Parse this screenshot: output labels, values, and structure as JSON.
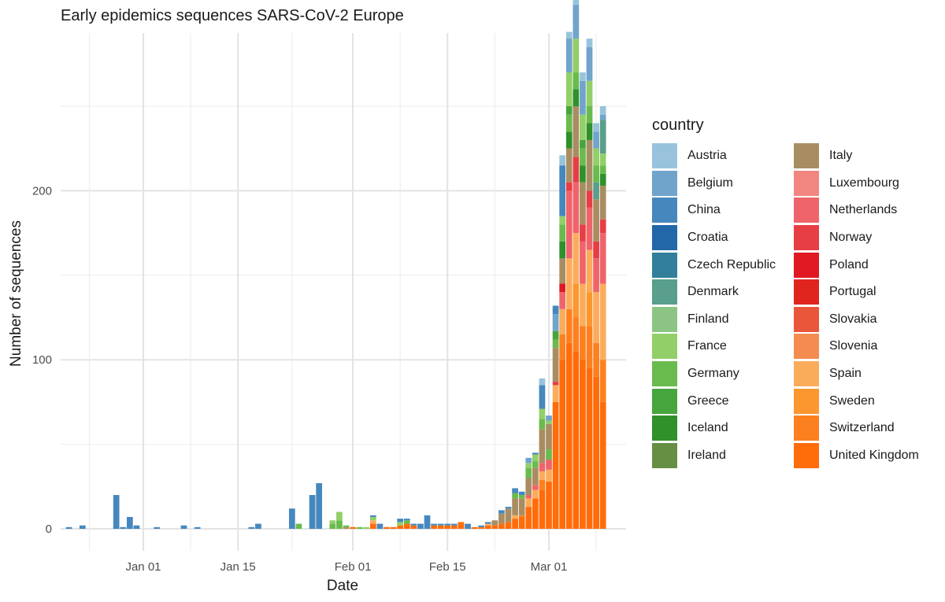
{
  "chart_data": {
    "type": "bar",
    "stacked": true,
    "title": "Early epidemics sequences SARS-CoV-2 Europe",
    "xlabel": "Date",
    "ylabel": "Number of sequences",
    "x_ticks": [
      "Jan 01",
      "Jan 15",
      "Feb 01",
      "Feb 15",
      "Mar 01"
    ],
    "y_ticks": [
      "0",
      "100",
      "200"
    ],
    "ylim": [
      0,
      287
    ],
    "xlim": [
      "2019-12-19",
      "2020-03-13"
    ],
    "grid": true,
    "legend_title": "country",
    "legend_position": "right",
    "countries": [
      "Austria",
      "Belgium",
      "China",
      "Croatia",
      "Czech Republic",
      "Denmark",
      "Finland",
      "France",
      "Germany",
      "Greece",
      "Iceland",
      "Ireland",
      "Italy",
      "Luxembourg",
      "Netherlands",
      "Norway",
      "Poland",
      "Portugal",
      "Slovakia",
      "Slovenia",
      "Spain",
      "Sweden",
      "Switzerland",
      "United Kingdom"
    ],
    "colors": {
      "Austria": "#99c3dc",
      "Belgium": "#70a4cb",
      "China": "#4688be",
      "Croatia": "#2268a8",
      "Czech Republic": "#317f9b",
      "Denmark": "#5a9e8c",
      "Finland": "#8cc583",
      "France": "#92cf68",
      "Germany": "#6abb4d",
      "Greece": "#46a53d",
      "Iceland": "#30912a",
      "Ireland": "#678f43",
      "Italy": "#a98d62",
      "Luxembourg": "#f0867f",
      "Netherlands": "#ef646a",
      "Norway": "#e73d44",
      "Poland": "#e01822",
      "Portugal": "#e0251f",
      "Slovakia": "#ea563a",
      "Slovenia": "#f48c50",
      "Spain": "#fbac5b",
      "Sweden": "#fc962f",
      "Switzerland": "#fd8020",
      "United Kingdom": "#ff6c0a"
    },
    "bars": [
      {
        "date": "2019-12-21",
        "segments": [
          [
            "China",
            1
          ]
        ]
      },
      {
        "date": "2019-12-23",
        "segments": [
          [
            "China",
            2
          ]
        ]
      },
      {
        "date": "2019-12-28",
        "segments": [
          [
            "China",
            20
          ]
        ]
      },
      {
        "date": "2019-12-29",
        "segments": [
          [
            "China",
            1
          ]
        ]
      },
      {
        "date": "2019-12-30",
        "segments": [
          [
            "China",
            7
          ]
        ]
      },
      {
        "date": "2019-12-31",
        "segments": [
          [
            "China",
            2
          ]
        ]
      },
      {
        "date": "2020-01-03",
        "segments": [
          [
            "China",
            1
          ]
        ]
      },
      {
        "date": "2020-01-07",
        "segments": [
          [
            "China",
            2
          ]
        ]
      },
      {
        "date": "2020-01-09",
        "segments": [
          [
            "China",
            1
          ]
        ]
      },
      {
        "date": "2020-01-17",
        "segments": [
          [
            "China",
            1
          ]
        ]
      },
      {
        "date": "2020-01-18",
        "segments": [
          [
            "China",
            3
          ]
        ]
      },
      {
        "date": "2020-01-23",
        "segments": [
          [
            "China",
            12
          ]
        ]
      },
      {
        "date": "2020-01-24",
        "segments": [
          [
            "Germany",
            3
          ]
        ]
      },
      {
        "date": "2020-01-26",
        "segments": [
          [
            "China",
            20
          ]
        ]
      },
      {
        "date": "2020-01-27",
        "segments": [
          [
            "China",
            27
          ]
        ]
      },
      {
        "date": "2020-01-29",
        "segments": [
          [
            "Germany",
            3
          ],
          [
            "France",
            2
          ]
        ]
      },
      {
        "date": "2020-01-30",
        "segments": [
          [
            "Germany",
            5
          ],
          [
            "France",
            5
          ]
        ]
      },
      {
        "date": "2020-01-31",
        "segments": [
          [
            "Italy",
            1
          ],
          [
            "Germany",
            1
          ]
        ]
      },
      {
        "date": "2020-02-01",
        "segments": [
          [
            "United Kingdom",
            1
          ]
        ]
      },
      {
        "date": "2020-02-02",
        "segments": [
          [
            "Germany",
            1
          ]
        ]
      },
      {
        "date": "2020-02-03",
        "segments": [
          [
            "France",
            1
          ]
        ]
      },
      {
        "date": "2020-02-04",
        "segments": [
          [
            "United Kingdom",
            3
          ],
          [
            "Spain",
            2
          ],
          [
            "France",
            2
          ],
          [
            "China",
            1
          ]
        ]
      },
      {
        "date": "2020-02-05",
        "segments": [
          [
            "China",
            3
          ]
        ]
      },
      {
        "date": "2020-02-06",
        "segments": [
          [
            "United Kingdom",
            1
          ]
        ]
      },
      {
        "date": "2020-02-07",
        "segments": [
          [
            "United Kingdom",
            1
          ]
        ]
      },
      {
        "date": "2020-02-08",
        "segments": [
          [
            "United Kingdom",
            2
          ],
          [
            "France",
            2
          ],
          [
            "China",
            2
          ]
        ]
      },
      {
        "date": "2020-02-09",
        "segments": [
          [
            "United Kingdom",
            3
          ],
          [
            "Germany",
            2
          ],
          [
            "China",
            1
          ]
        ]
      },
      {
        "date": "2020-02-10",
        "segments": [
          [
            "United Kingdom",
            2
          ],
          [
            "China",
            1
          ]
        ]
      },
      {
        "date": "2020-02-11",
        "segments": [
          [
            "China",
            3
          ]
        ]
      },
      {
        "date": "2020-02-12",
        "segments": [
          [
            "China",
            8
          ]
        ]
      },
      {
        "date": "2020-02-13",
        "segments": [
          [
            "United Kingdom",
            2
          ],
          [
            "China",
            1
          ]
        ]
      },
      {
        "date": "2020-02-14",
        "segments": [
          [
            "United Kingdom",
            2
          ],
          [
            "China",
            1
          ]
        ]
      },
      {
        "date": "2020-02-15",
        "segments": [
          [
            "United Kingdom",
            2
          ],
          [
            "China",
            1
          ]
        ]
      },
      {
        "date": "2020-02-16",
        "segments": [
          [
            "United Kingdom",
            2
          ],
          [
            "China",
            1
          ]
        ]
      },
      {
        "date": "2020-02-17",
        "segments": [
          [
            "United Kingdom",
            4
          ]
        ]
      },
      {
        "date": "2020-02-18",
        "segments": [
          [
            "China",
            3
          ]
        ]
      },
      {
        "date": "2020-02-19",
        "segments": [
          [
            "United Kingdom",
            1
          ]
        ]
      },
      {
        "date": "2020-02-20",
        "segments": [
          [
            "United Kingdom",
            1
          ],
          [
            "China",
            1
          ]
        ]
      },
      {
        "date": "2020-02-21",
        "segments": [
          [
            "United Kingdom",
            2
          ],
          [
            "Spain",
            1
          ],
          [
            "China",
            1
          ]
        ]
      },
      {
        "date": "2020-02-22",
        "segments": [
          [
            "United Kingdom",
            2
          ],
          [
            "Italy",
            3
          ]
        ]
      },
      {
        "date": "2020-02-23",
        "segments": [
          [
            "United Kingdom",
            3
          ],
          [
            "Italy",
            6
          ],
          [
            "China",
            2
          ]
        ]
      },
      {
        "date": "2020-02-24",
        "segments": [
          [
            "United Kingdom",
            4
          ],
          [
            "Italy",
            8
          ],
          [
            "China",
            1
          ]
        ]
      },
      {
        "date": "2020-02-25",
        "segments": [
          [
            "United Kingdom",
            6
          ],
          [
            "Spain",
            2
          ],
          [
            "Italy",
            10
          ],
          [
            "Germany",
            3
          ],
          [
            "China",
            3
          ]
        ]
      },
      {
        "date": "2020-02-26",
        "segments": [
          [
            "United Kingdom",
            7
          ],
          [
            "Switzerland",
            1
          ],
          [
            "Italy",
            10
          ],
          [
            "Germany",
            2
          ],
          [
            "China",
            2
          ]
        ]
      },
      {
        "date": "2020-02-27",
        "segments": [
          [
            "United Kingdom",
            13
          ],
          [
            "Spain",
            5
          ],
          [
            "Netherlands",
            2
          ],
          [
            "Italy",
            10
          ],
          [
            "Germany",
            6
          ],
          [
            "France",
            3
          ],
          [
            "Belgium",
            3
          ]
        ]
      },
      {
        "date": "2020-02-28",
        "segments": [
          [
            "United Kingdom",
            18
          ],
          [
            "Spain",
            5
          ],
          [
            "Netherlands",
            3
          ],
          [
            "Italy",
            10
          ],
          [
            "Germany",
            4
          ],
          [
            "France",
            4
          ],
          [
            "China",
            1
          ]
        ]
      },
      {
        "date": "2020-02-29",
        "segments": [
          [
            "United Kingdom",
            23
          ],
          [
            "Switzerland",
            6
          ],
          [
            "Spain",
            5
          ],
          [
            "Netherlands",
            5
          ],
          [
            "Italy",
            20
          ],
          [
            "Germany",
            6
          ],
          [
            "France",
            6
          ],
          [
            "China",
            14
          ],
          [
            "Austria",
            4
          ]
        ]
      },
      {
        "date": "2020-03-01",
        "segments": [
          [
            "United Kingdom",
            28
          ],
          [
            "Spain",
            7
          ],
          [
            "Netherlands",
            6
          ],
          [
            "Germany",
            6
          ],
          [
            "Italy",
            15
          ],
          [
            "France",
            2
          ],
          [
            "Belgium",
            3
          ]
        ]
      },
      {
        "date": "2020-03-02",
        "segments": [
          [
            "United Kingdom",
            75
          ],
          [
            "Spain",
            10
          ],
          [
            "Norway",
            2
          ],
          [
            "Italy",
            20
          ],
          [
            "Germany",
            5
          ],
          [
            "Greece",
            5
          ],
          [
            "Belgium",
            10
          ],
          [
            "China",
            5
          ]
        ]
      },
      {
        "date": "2020-03-03",
        "segments": [
          [
            "United Kingdom",
            100
          ],
          [
            "Switzerland",
            15
          ],
          [
            "Spain",
            15
          ],
          [
            "Netherlands",
            10
          ],
          [
            "Poland",
            5
          ],
          [
            "Italy",
            15
          ],
          [
            "Iceland",
            10
          ],
          [
            "Germany",
            10
          ],
          [
            "France",
            5
          ],
          [
            "China",
            30
          ],
          [
            "Austria",
            6
          ]
        ]
      },
      {
        "date": "2020-03-04",
        "segments": [
          [
            "United Kingdom",
            110
          ],
          [
            "Switzerland",
            20
          ],
          [
            "Spain",
            30
          ],
          [
            "Netherlands",
            40
          ],
          [
            "Norway",
            5
          ],
          [
            "Italy",
            20
          ],
          [
            "Iceland",
            10
          ],
          [
            "Germany",
            10
          ],
          [
            "Greece",
            5
          ],
          [
            "France",
            20
          ],
          [
            "Belgium",
            20
          ],
          [
            "Austria",
            4
          ]
        ]
      },
      {
        "date": "2020-03-05",
        "segments": [
          [
            "United Kingdom",
            105
          ],
          [
            "Switzerland",
            20
          ],
          [
            "Sweden",
            20
          ],
          [
            "Spain",
            30
          ],
          [
            "Netherlands",
            30
          ],
          [
            "Norway",
            15
          ],
          [
            "Italy",
            30
          ],
          [
            "Iceland",
            10
          ],
          [
            "Germany",
            10
          ],
          [
            "France",
            20
          ],
          [
            "Belgium",
            20
          ],
          [
            "Austria",
            10
          ]
        ]
      },
      {
        "date": "2020-03-06",
        "segments": [
          [
            "United Kingdom",
            100
          ],
          [
            "Switzerland",
            20
          ],
          [
            "Spain",
            25
          ],
          [
            "Netherlands",
            25
          ],
          [
            "Norway",
            10
          ],
          [
            "Italy",
            25
          ],
          [
            "Iceland",
            10
          ],
          [
            "Germany",
            10
          ],
          [
            "Greece",
            5
          ],
          [
            "France",
            15
          ],
          [
            "Belgium",
            20
          ],
          [
            "Austria",
            5
          ]
        ]
      },
      {
        "date": "2020-03-07",
        "segments": [
          [
            "United Kingdom",
            95
          ],
          [
            "Switzerland",
            25
          ],
          [
            "Sweden",
            20
          ],
          [
            "Spain",
            25
          ],
          [
            "Netherlands",
            25
          ],
          [
            "Norway",
            10
          ],
          [
            "Italy",
            30
          ],
          [
            "Iceland",
            10
          ],
          [
            "Germany",
            10
          ],
          [
            "France",
            15
          ],
          [
            "Belgium",
            20
          ],
          [
            "Austria",
            5
          ]
        ]
      },
      {
        "date": "2020-03-08",
        "segments": [
          [
            "United Kingdom",
            90
          ],
          [
            "Switzerland",
            20
          ],
          [
            "Spain",
            30
          ],
          [
            "Netherlands",
            20
          ],
          [
            "Norway",
            10
          ],
          [
            "Italy",
            25
          ],
          [
            "Denmark",
            10
          ],
          [
            "Germany",
            10
          ],
          [
            "France",
            10
          ],
          [
            "Belgium",
            10
          ],
          [
            "Austria",
            5
          ]
        ]
      },
      {
        "date": "2020-03-09",
        "segments": [
          [
            "United Kingdom",
            75
          ],
          [
            "Switzerland",
            25
          ],
          [
            "Spain",
            45
          ],
          [
            "Netherlands",
            30
          ],
          [
            "Norway",
            8
          ],
          [
            "Italy",
            20
          ],
          [
            "Iceland",
            7
          ],
          [
            "Germany",
            5
          ],
          [
            "France",
            7
          ],
          [
            "Denmark",
            20
          ],
          [
            "Belgium",
            3
          ],
          [
            "Austria",
            5
          ]
        ]
      }
    ]
  }
}
